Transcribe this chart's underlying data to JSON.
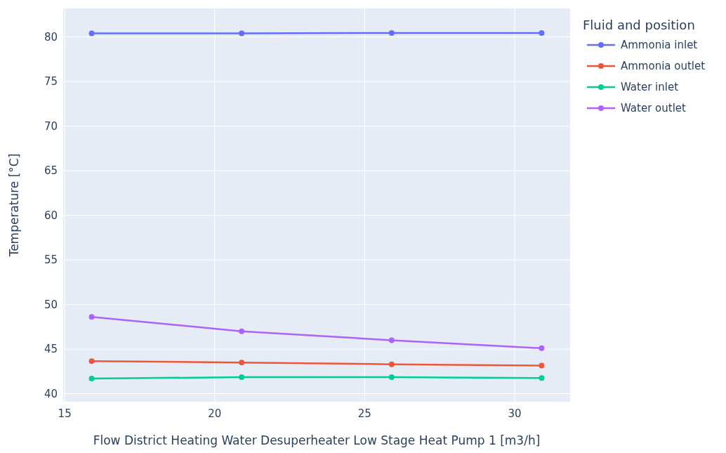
{
  "chart_data": {
    "type": "line",
    "xlabel": "Flow District Heating Water Desuperheater Low Stage Heat Pump 1 [m3/h]",
    "ylabel": "Temperature [°C]",
    "legend_title": "Fluid and position",
    "x": [
      15.9,
      20.9,
      25.9,
      30.9
    ],
    "series": [
      {
        "name": "Ammonia inlet",
        "color": "#636efa",
        "values": [
          80.4,
          80.4,
          80.45,
          80.45
        ]
      },
      {
        "name": "Ammonia outlet",
        "color": "#ef553b",
        "values": [
          43.65,
          43.5,
          43.3,
          43.15
        ]
      },
      {
        "name": "Water inlet",
        "color": "#00cc96",
        "values": [
          41.7,
          41.85,
          41.85,
          41.75
        ]
      },
      {
        "name": "Water outlet",
        "color": "#ab63fa",
        "values": [
          48.6,
          47.0,
          46.0,
          45.1
        ]
      }
    ],
    "xlim": [
      14.95,
      31.85
    ],
    "xticks": [
      15,
      20,
      25,
      30
    ],
    "ylim": [
      39.1,
      83.2
    ],
    "yticks": [
      40,
      45,
      50,
      55,
      60,
      65,
      70,
      75,
      80
    ],
    "grid": true,
    "legend": "right",
    "marker": "circle",
    "line_style": "solid"
  }
}
